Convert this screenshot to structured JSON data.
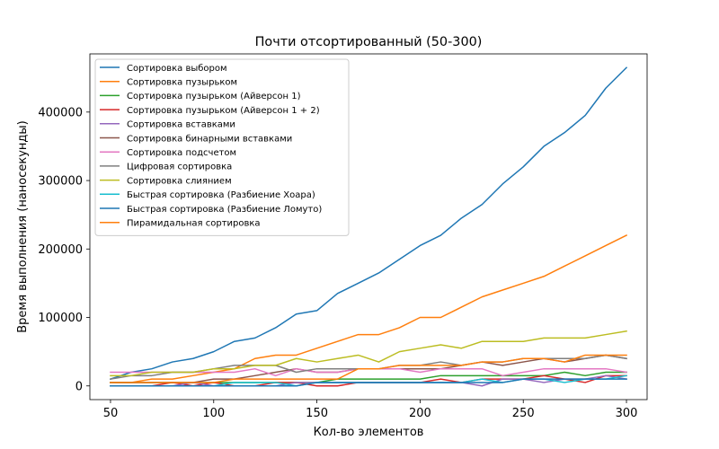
{
  "chart_data": {
    "type": "line",
    "title": "Почти отсортированный (50-300)",
    "xlabel": "Кол-во элементов",
    "ylabel": "Время выполнения (наносекунды)",
    "xlim": [
      40,
      310
    ],
    "ylim": [
      -20000,
      485000
    ],
    "x_ticks": [
      50,
      100,
      150,
      200,
      250,
      300
    ],
    "y_ticks": [
      0,
      100000,
      200000,
      300000,
      400000
    ],
    "grid": false,
    "legend_position": "top-left",
    "x": [
      50,
      60,
      70,
      80,
      90,
      100,
      110,
      120,
      130,
      140,
      150,
      160,
      170,
      180,
      190,
      200,
      210,
      220,
      230,
      240,
      250,
      260,
      270,
      280,
      290,
      300
    ],
    "series": [
      {
        "name": "Сортировка выбором",
        "color": "#1f77b4",
        "values": [
          10000,
          20000,
          25000,
          35000,
          40000,
          50000,
          65000,
          70000,
          85000,
          105000,
          110000,
          135000,
          150000,
          165000,
          185000,
          205000,
          220000,
          245000,
          265000,
          295000,
          320000,
          350000,
          370000,
          395000,
          435000,
          465000
        ]
      },
      {
        "name": "Сортировка пузырьком",
        "color": "#ff7f0e",
        "values": [
          5000,
          5000,
          10000,
          10000,
          15000,
          20000,
          25000,
          40000,
          45000,
          45000,
          55000,
          65000,
          75000,
          75000,
          85000,
          100000,
          100000,
          115000,
          130000,
          140000,
          150000,
          160000,
          175000,
          190000,
          205000,
          220000
        ]
      },
      {
        "name": "Сортировка пузырьком (Айверсон 1)",
        "color": "#2ca02c",
        "values": [
          5000,
          5000,
          5000,
          5000,
          5000,
          5000,
          5000,
          5000,
          5000,
          5000,
          5000,
          10000,
          10000,
          10000,
          10000,
          10000,
          15000,
          15000,
          15000,
          15000,
          15000,
          15000,
          20000,
          15000,
          20000,
          20000
        ]
      },
      {
        "name": "Сортировка пузырьком (Айверсон 1 + 2)",
        "color": "#d62728",
        "values": [
          0,
          0,
          0,
          5000,
          0,
          5000,
          0,
          0,
          5000,
          5000,
          0,
          0,
          5000,
          5000,
          5000,
          5000,
          10000,
          5000,
          10000,
          10000,
          10000,
          15000,
          10000,
          5000,
          15000,
          15000
        ]
      },
      {
        "name": "Сортировка вставками",
        "color": "#9467bd",
        "values": [
          0,
          0,
          0,
          0,
          5000,
          0,
          0,
          0,
          0,
          5000,
          5000,
          5000,
          5000,
          5000,
          5000,
          5000,
          5000,
          5000,
          0,
          10000,
          10000,
          5000,
          10000,
          10000,
          15000,
          10000
        ]
      },
      {
        "name": "Сортировка бинарными вставками",
        "color": "#8c564b",
        "values": [
          5000,
          5000,
          5000,
          5000,
          5000,
          10000,
          10000,
          15000,
          20000,
          25000,
          20000,
          20000,
          25000,
          25000,
          25000,
          25000,
          25000,
          30000,
          35000,
          30000,
          35000,
          40000,
          35000,
          40000,
          45000,
          40000
        ]
      },
      {
        "name": "Сортировка подсчетом",
        "color": "#e377c2",
        "values": [
          20000,
          20000,
          20000,
          20000,
          20000,
          20000,
          20000,
          25000,
          15000,
          25000,
          20000,
          20000,
          25000,
          25000,
          25000,
          20000,
          25000,
          25000,
          25000,
          15000,
          20000,
          25000,
          25000,
          25000,
          25000,
          20000
        ]
      },
      {
        "name": "Цифровая сортировка",
        "color": "#7f7f7f",
        "values": [
          10000,
          15000,
          15000,
          20000,
          20000,
          25000,
          30000,
          30000,
          30000,
          20000,
          25000,
          25000,
          25000,
          25000,
          30000,
          30000,
          35000,
          30000,
          35000,
          35000,
          40000,
          40000,
          40000,
          40000,
          45000,
          40000
        ]
      },
      {
        "name": "Сортировка слиянием",
        "color": "#bcbd22",
        "values": [
          15000,
          15000,
          20000,
          20000,
          20000,
          25000,
          25000,
          30000,
          30000,
          40000,
          35000,
          40000,
          45000,
          35000,
          50000,
          55000,
          60000,
          55000,
          65000,
          65000,
          65000,
          70000,
          70000,
          70000,
          75000,
          80000
        ]
      },
      {
        "name": "Быстрая сортировка (Разбиение Хоара)",
        "color": "#17becf",
        "values": [
          0,
          0,
          0,
          0,
          0,
          0,
          5000,
          5000,
          5000,
          0,
          5000,
          5000,
          5000,
          5000,
          5000,
          5000,
          5000,
          5000,
          10000,
          5000,
          10000,
          10000,
          5000,
          10000,
          10000,
          15000
        ]
      },
      {
        "name": "Быстрая сортировка (Разбиение Ломуто)",
        "color": "#1f77b4",
        "values": [
          0,
          0,
          0,
          0,
          0,
          0,
          0,
          0,
          0,
          0,
          5000,
          5000,
          5000,
          5000,
          5000,
          5000,
          5000,
          5000,
          5000,
          5000,
          10000,
          10000,
          10000,
          10000,
          10000,
          10000
        ]
      },
      {
        "name": "Пирамидальная сортировка",
        "color": "#ff7f0e",
        "values": [
          5000,
          5000,
          5000,
          5000,
          5000,
          5000,
          10000,
          10000,
          10000,
          10000,
          10000,
          10000,
          25000,
          25000,
          30000,
          30000,
          30000,
          30000,
          35000,
          35000,
          40000,
          40000,
          35000,
          45000,
          45000,
          45000
        ]
      }
    ]
  }
}
